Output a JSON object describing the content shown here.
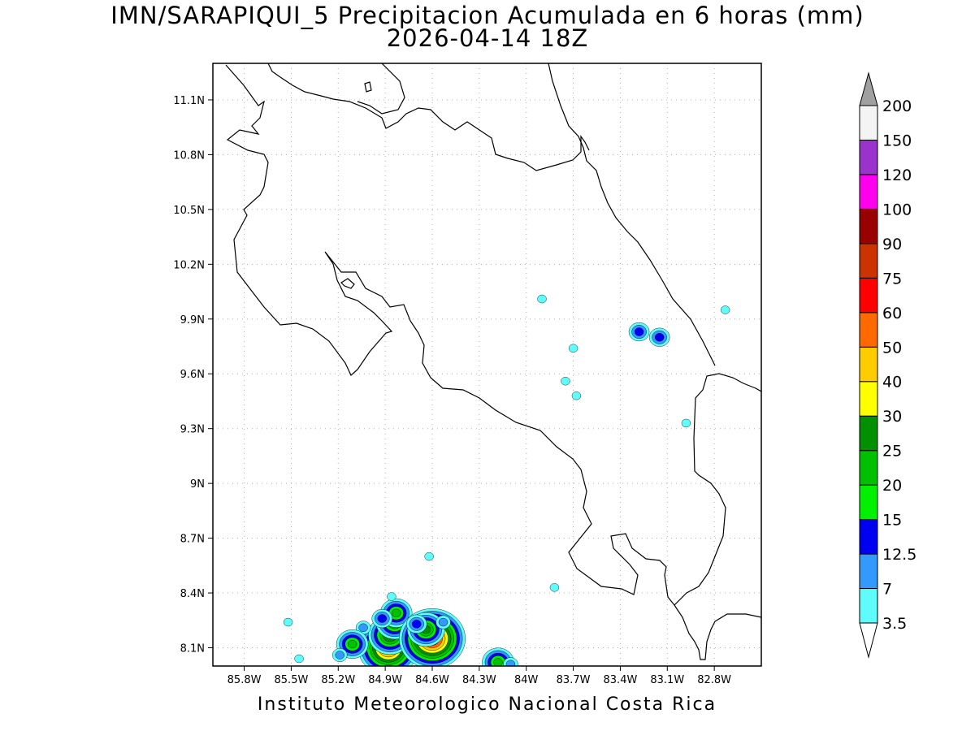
{
  "title": {
    "line1": "IMN/SARAPIQUI_5 Precipitacion Acumulada en 6 horas (mm)",
    "line2": "2026-04-14 18Z"
  },
  "credit": "Instituto Meteorologico Nacional Costa Rica",
  "map": {
    "lon_range": [
      -86.0,
      -82.5
    ],
    "lat_range": [
      8.0,
      11.3
    ],
    "lon_ticks": [
      {
        "value": -85.8,
        "label": "85.8W"
      },
      {
        "value": -85.5,
        "label": "85.5W"
      },
      {
        "value": -85.2,
        "label": "85.2W"
      },
      {
        "value": -84.9,
        "label": "84.9W"
      },
      {
        "value": -84.6,
        "label": "84.6W"
      },
      {
        "value": -84.3,
        "label": "84.3W"
      },
      {
        "value": -84.0,
        "label": "84W"
      },
      {
        "value": -83.7,
        "label": "83.7W"
      },
      {
        "value": -83.4,
        "label": "83.4W"
      },
      {
        "value": -83.1,
        "label": "83.1W"
      },
      {
        "value": -82.8,
        "label": "82.8W"
      }
    ],
    "lat_ticks": [
      {
        "value": 8.1,
        "label": "8.1N"
      },
      {
        "value": 8.4,
        "label": "8.4N"
      },
      {
        "value": 8.7,
        "label": "8.7N"
      },
      {
        "value": 9.0,
        "label": "9N"
      },
      {
        "value": 9.3,
        "label": "9.3N"
      },
      {
        "value": 9.6,
        "label": "9.6N"
      },
      {
        "value": 9.9,
        "label": "9.9N"
      },
      {
        "value": 10.2,
        "label": "10.2N"
      },
      {
        "value": 10.5,
        "label": "10.5N"
      },
      {
        "value": 10.8,
        "label": "10.8N"
      },
      {
        "value": 11.1,
        "label": "11.1N"
      }
    ],
    "grid": true,
    "precip_cells": [
      {
        "lon": -84.88,
        "lat": 8.1,
        "value": 60
      },
      {
        "lon": -84.87,
        "lat": 8.17,
        "value": 30
      },
      {
        "lon": -84.84,
        "lat": 8.24,
        "value": 25
      },
      {
        "lon": -84.83,
        "lat": 8.29,
        "value": 20
      },
      {
        "lon": -84.92,
        "lat": 8.26,
        "value": 12.5
      },
      {
        "lon": -84.6,
        "lat": 8.15,
        "value": 75
      },
      {
        "lon": -84.64,
        "lat": 8.2,
        "value": 25
      },
      {
        "lon": -84.53,
        "lat": 8.24,
        "value": 7
      },
      {
        "lon": -84.7,
        "lat": 8.23,
        "value": 12.5
      },
      {
        "lon": -85.04,
        "lat": 8.21,
        "value": 7
      },
      {
        "lon": -85.11,
        "lat": 8.12,
        "value": 20
      },
      {
        "lon": -85.19,
        "lat": 8.06,
        "value": 7
      },
      {
        "lon": -85.52,
        "lat": 8.24,
        "value": 3.5
      },
      {
        "lon": -85.45,
        "lat": 8.04,
        "value": 3.5
      },
      {
        "lon": -84.18,
        "lat": 8.02,
        "value": 20
      },
      {
        "lon": -84.1,
        "lat": 8.01,
        "value": 7
      },
      {
        "lon": -84.86,
        "lat": 8.38,
        "value": 3.5
      },
      {
        "lon": -84.62,
        "lat": 8.6,
        "value": 3.5
      },
      {
        "lon": -83.82,
        "lat": 8.43,
        "value": 3.5
      },
      {
        "lon": -83.9,
        "lat": 10.01,
        "value": 3.5
      },
      {
        "lon": -83.28,
        "lat": 9.83,
        "value": 12.5
      },
      {
        "lon": -83.15,
        "lat": 9.8,
        "value": 12.5
      },
      {
        "lon": -83.68,
        "lat": 9.48,
        "value": 3.5
      },
      {
        "lon": -83.75,
        "lat": 9.56,
        "value": 3.5
      },
      {
        "lon": -83.7,
        "lat": 9.74,
        "value": 3.5
      },
      {
        "lon": -82.98,
        "lat": 9.33,
        "value": 3.5
      },
      {
        "lon": -82.73,
        "lat": 9.95,
        "value": 3.5
      }
    ]
  },
  "colorbar": {
    "levels": [
      "3.5",
      "7",
      "12.5",
      "15",
      "20",
      "25",
      "30",
      "40",
      "50",
      "60",
      "75",
      "90",
      "100",
      "120",
      "150",
      "200"
    ],
    "colors": [
      "#5ffcfc",
      "#3399ff",
      "#0000f0",
      "#00f000",
      "#00c000",
      "#009000",
      "#ffff00",
      "#ffcc00",
      "#ff6a00",
      "#ff0000",
      "#cc3300",
      "#990000",
      "#ff00ee",
      "#9933cc",
      "#f4f4f4"
    ],
    "top_arrow_color": "#a0a0a0",
    "bottom_arrow_color": "#ffffff"
  }
}
